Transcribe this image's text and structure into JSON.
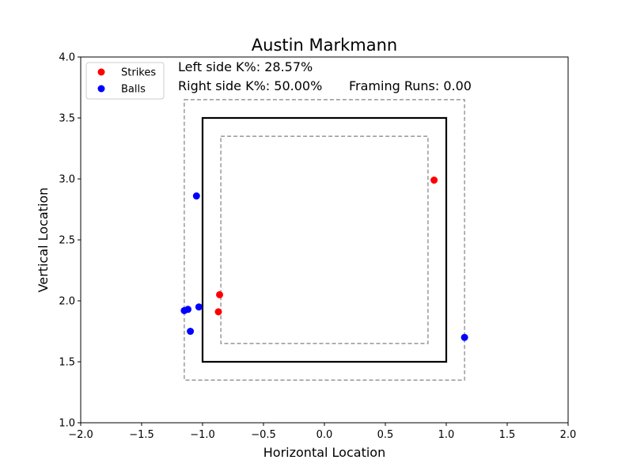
{
  "chart_data": {
    "type": "scatter",
    "title": "Austin Markmann",
    "xlabel": "Horizontal Location",
    "ylabel": "Vertical Location",
    "xlim": [
      -2.0,
      2.0
    ],
    "ylim": [
      1.0,
      4.0
    ],
    "xticks": [
      "−2.0",
      "−1.5",
      "−1.0",
      "−0.5",
      "0.0",
      "0.5",
      "1.0",
      "1.5",
      "2.0"
    ],
    "yticks": [
      "1.0",
      "1.5",
      "2.0",
      "2.5",
      "3.0",
      "3.5",
      "4.0"
    ],
    "grid": false,
    "legend_position": "top-left",
    "series": [
      {
        "name": "Strikes",
        "color": "#ff0000",
        "points": [
          [
            0.9,
            2.99
          ],
          [
            -0.86,
            2.05
          ],
          [
            -0.87,
            1.91
          ]
        ]
      },
      {
        "name": "Balls",
        "color": "#0000ff",
        "points": [
          [
            -1.05,
            2.86
          ],
          [
            -1.03,
            1.95
          ],
          [
            -1.12,
            1.93
          ],
          [
            -1.15,
            1.92
          ],
          [
            -1.1,
            1.75
          ],
          [
            1.15,
            1.7
          ]
        ]
      }
    ],
    "zones": [
      {
        "name": "strike-zone",
        "x": [
          -1.0,
          1.0
        ],
        "y": [
          1.5,
          3.5
        ],
        "style": "solid",
        "color": "#000000"
      },
      {
        "name": "outer-shadow-zone",
        "x": [
          -1.15,
          1.15
        ],
        "y": [
          1.35,
          3.65
        ],
        "style": "dashed",
        "color": "#808080"
      },
      {
        "name": "inner-shadow-zone",
        "x": [
          -0.85,
          0.85
        ],
        "y": [
          1.65,
          3.35
        ],
        "style": "dashed",
        "color": "#808080"
      }
    ],
    "annotations": {
      "left_k": "Left side K%: 28.57%",
      "right_k": "Right side K%: 50.00%",
      "framing": "Framing Runs: 0.00"
    }
  }
}
